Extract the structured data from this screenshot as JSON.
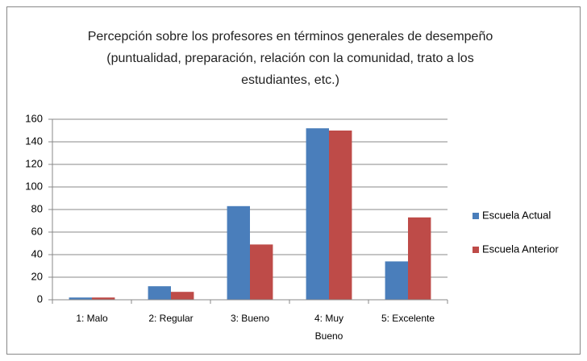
{
  "chart_data": {
    "type": "bar",
    "title": "Percepción sobre los profesores en términos generales de desempeño (puntualidad, preparación, relación con la comunidad, trato a los estudiantes, etc.)",
    "categories": [
      "1: Malo",
      "2: Regular",
      "3: Bueno",
      "4: Muy Bueno",
      "5: Excelente"
    ],
    "series": [
      {
        "name": "Escuela Actual",
        "color": "#4a7ebb",
        "values": [
          2,
          12,
          83,
          152,
          34
        ]
      },
      {
        "name": "Escuela Anterior",
        "color": "#be4b48",
        "values": [
          2,
          7,
          49,
          150,
          73
        ]
      }
    ],
    "ylim": [
      0,
      160
    ],
    "yticks": [
      0,
      20,
      40,
      60,
      80,
      100,
      120,
      140,
      160
    ],
    "grid": true,
    "legend": "right"
  }
}
